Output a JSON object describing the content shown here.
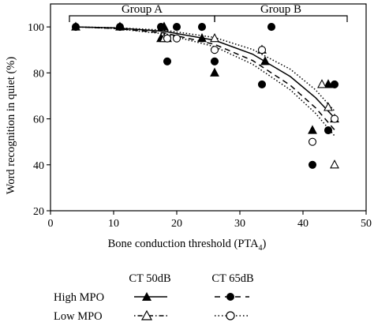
{
  "chart_data": {
    "type": "scatter",
    "xlabel": "Bone conduction threshold (PTA",
    "xlabel_sub": "4",
    "xlabel_close": ")",
    "ylabel": "Word recognition in quiet (%)",
    "xlim": [
      0,
      50
    ],
    "ylim": [
      20,
      110
    ],
    "xticks": [
      0,
      10,
      20,
      30,
      40,
      50
    ],
    "yticks": [
      20,
      40,
      60,
      80,
      100
    ],
    "grid": false,
    "groups": [
      {
        "label": "Group A",
        "x_start": 3,
        "x_end": 26
      },
      {
        "label": "Group B",
        "x_start": 26,
        "x_end": 47
      }
    ],
    "series": [
      {
        "key": "high_mpo_50",
        "marker": "triangle-filled",
        "line": "solid",
        "points": [
          [
            4,
            100
          ],
          [
            11,
            100
          ],
          [
            17.5,
            95
          ],
          [
            18,
            100
          ],
          [
            18.5,
            95
          ],
          [
            24,
            95
          ],
          [
            26,
            80
          ],
          [
            34,
            85
          ],
          [
            41.5,
            55
          ],
          [
            44,
            75
          ],
          [
            45,
            60
          ]
        ],
        "trend_points": [
          [
            4,
            100
          ],
          [
            10,
            99.6
          ],
          [
            18,
            98.1
          ],
          [
            26,
            94.2
          ],
          [
            32,
            88.2
          ],
          [
            38,
            78.4
          ],
          [
            42,
            69.2
          ],
          [
            45,
            60.4
          ]
        ]
      },
      {
        "key": "high_mpo_65",
        "marker": "circle-filled",
        "line": "dash",
        "points": [
          [
            4,
            100
          ],
          [
            11,
            100
          ],
          [
            17.5,
            100
          ],
          [
            18.5,
            85
          ],
          [
            20,
            100
          ],
          [
            24,
            100
          ],
          [
            26,
            85
          ],
          [
            33.5,
            75
          ],
          [
            35,
            100
          ],
          [
            41.5,
            40
          ],
          [
            44,
            55
          ],
          [
            45,
            75
          ]
        ],
        "trend_points": [
          [
            4,
            100
          ],
          [
            10,
            99.4
          ],
          [
            18,
            97.4
          ],
          [
            26,
            92.4
          ],
          [
            32,
            85.4
          ],
          [
            38,
            74.6
          ],
          [
            42,
            64.8
          ],
          [
            45,
            55.2
          ]
        ]
      },
      {
        "key": "low_mpo_50",
        "marker": "triangle-open",
        "line": "dot",
        "points": [
          [
            18,
            95
          ],
          [
            26,
            95
          ],
          [
            33.5,
            90
          ],
          [
            43,
            75
          ],
          [
            44,
            65
          ],
          [
            45,
            40
          ]
        ],
        "trend_points": [
          [
            4,
            100
          ],
          [
            10,
            99.7
          ],
          [
            18,
            98.6
          ],
          [
            26,
            95.4
          ],
          [
            32,
            90.2
          ],
          [
            38,
            81.6
          ],
          [
            42,
            72.6
          ],
          [
            45,
            63.4
          ]
        ]
      },
      {
        "key": "low_mpo_65",
        "marker": "circle-open",
        "line": "dot",
        "points": [
          [
            18.5,
            95
          ],
          [
            20,
            95
          ],
          [
            26,
            90
          ],
          [
            33.5,
            90
          ],
          [
            41.5,
            50
          ],
          [
            45,
            60
          ]
        ],
        "trend_points": [
          [
            4,
            100
          ],
          [
            10,
            99.3
          ],
          [
            18,
            97
          ],
          [
            26,
            91.4
          ],
          [
            32,
            83.8
          ],
          [
            38,
            72.6
          ],
          [
            42,
            62.4
          ],
          [
            45,
            52.6
          ]
        ]
      }
    ]
  },
  "legend": {
    "col1_header": "CT 50dB",
    "col2_header": "CT 65dB",
    "row1_label": "High MPO",
    "row2_label": "Low MPO"
  }
}
